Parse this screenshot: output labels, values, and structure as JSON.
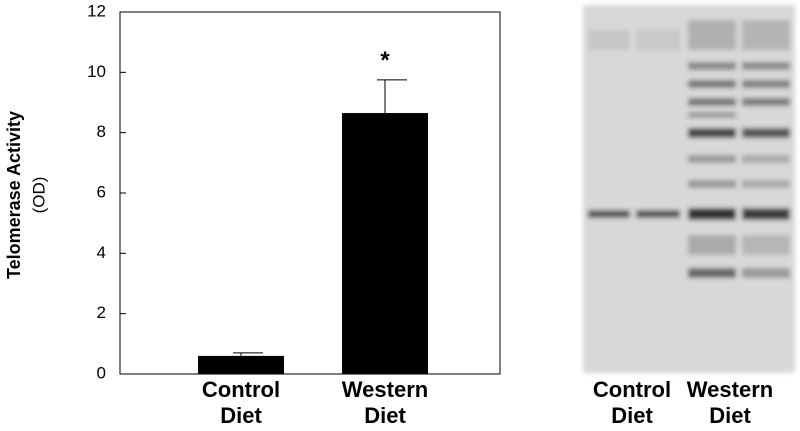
{
  "chart_data": {
    "type": "bar",
    "ylabel": "Telomerase Activity",
    "ylabel_unit": "(OD)",
    "categories": [
      "Control Diet",
      "Western Diet"
    ],
    "values": [
      0.6,
      8.65
    ],
    "errors": [
      0.1,
      1.1
    ],
    "color": "#000000",
    "annotations": [
      {
        "category": 1,
        "text": "*"
      }
    ],
    "ylim": [
      0,
      12
    ],
    "yticks": [
      0,
      2,
      4,
      6,
      8,
      10,
      12
    ],
    "grid": false
  },
  "gel": {
    "lane_labels": [
      "Control Diet",
      "Western Diet"
    ]
  }
}
